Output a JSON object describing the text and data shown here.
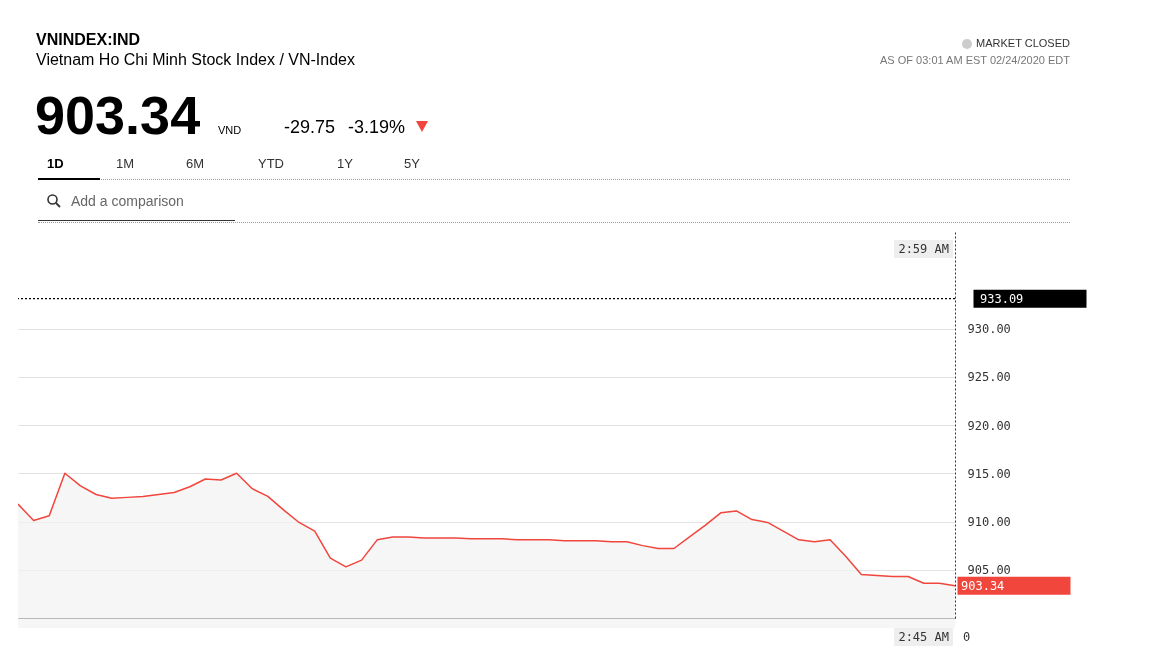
{
  "chart_data": {
    "type": "area",
    "title": "VNINDEX:IND",
    "subtitle": "Vietnam Ho Chi Minh Stock Index / VN-Index",
    "annotations": [
      "903.34",
      "VND",
      "-29.75",
      "-3.19%",
      "MARKET CLOSED",
      "AS OF 03:01 AM EST 02/24/2020 EDT",
      "1D",
      "1M",
      "6M",
      "YTD",
      "1Y",
      "5Y",
      "Add a comparison",
      "2:59 AM",
      "2:45 AM",
      "0"
    ],
    "categories": [
      null,
      null,
      null,
      null,
      null,
      null,
      null,
      null,
      null,
      null,
      null,
      null,
      null,
      null,
      null,
      null,
      null,
      null,
      null,
      null,
      null,
      null,
      null,
      null,
      null,
      null,
      null,
      null,
      null,
      null,
      null,
      null,
      null,
      null,
      null,
      null,
      null,
      null,
      null,
      null,
      null,
      null,
      null,
      null,
      null,
      null,
      null,
      null,
      null,
      null,
      null,
      null,
      null,
      null,
      null,
      null,
      null,
      null,
      null,
      null,
      null
    ],
    "series": [
      {
        "color": "#f0463c",
        "values": [
          911.8,
          910.1,
          910.6,
          915.0,
          913.7,
          912.8,
          912.4,
          912.5,
          912.6,
          912.8,
          913.0,
          913.6,
          914.4,
          914.3,
          915.0,
          913.4,
          912.6,
          911.2,
          909.9,
          909.0,
          906.2,
          905.3,
          906.0,
          908.1,
          908.4,
          908.4,
          908.3,
          908.3,
          908.3,
          908.2,
          908.2,
          908.2,
          908.1,
          908.1,
          908.1,
          908.0,
          908.0,
          908.0,
          907.9,
          907.9,
          907.5,
          907.2,
          907.2,
          908.4,
          909.6,
          910.9,
          911.1,
          910.2,
          909.9,
          909.0,
          908.1,
          907.9,
          908.1,
          906.4,
          904.5,
          904.4,
          904.3,
          904.3,
          903.6,
          903.6,
          903.34
        ],
        "value_labels": [
          null,
          null,
          null,
          null,
          null,
          null,
          null,
          null,
          null,
          null,
          null,
          null,
          null,
          null,
          null,
          null,
          null,
          null,
          null,
          null,
          null,
          null,
          null,
          null,
          null,
          null,
          null,
          null,
          null,
          null,
          null,
          null,
          null,
          null,
          null,
          null,
          null,
          null,
          null,
          null,
          null,
          null,
          null,
          null,
          null,
          null,
          null,
          null,
          null,
          null,
          null,
          null,
          null,
          null,
          null,
          null,
          null,
          null,
          null,
          null,
          "903.34"
        ]
      }
    ],
    "ylim": [
      900,
      940
    ],
    "yticks": [
      {
        "value": 905,
        "label": "905.00"
      },
      {
        "value": 910,
        "label": "910.00"
      },
      {
        "value": 915,
        "label": "915.00"
      },
      {
        "value": 920,
        "label": "920.00"
      },
      {
        "value": 925,
        "label": "925.00"
      },
      {
        "value": 930,
        "label": "930.00"
      }
    ],
    "grid": "y",
    "ref_lines": [
      {
        "axis": "y",
        "value": 933.09,
        "label": "933.09",
        "color": "#000000",
        "line_style": "dotted"
      }
    ]
  }
}
